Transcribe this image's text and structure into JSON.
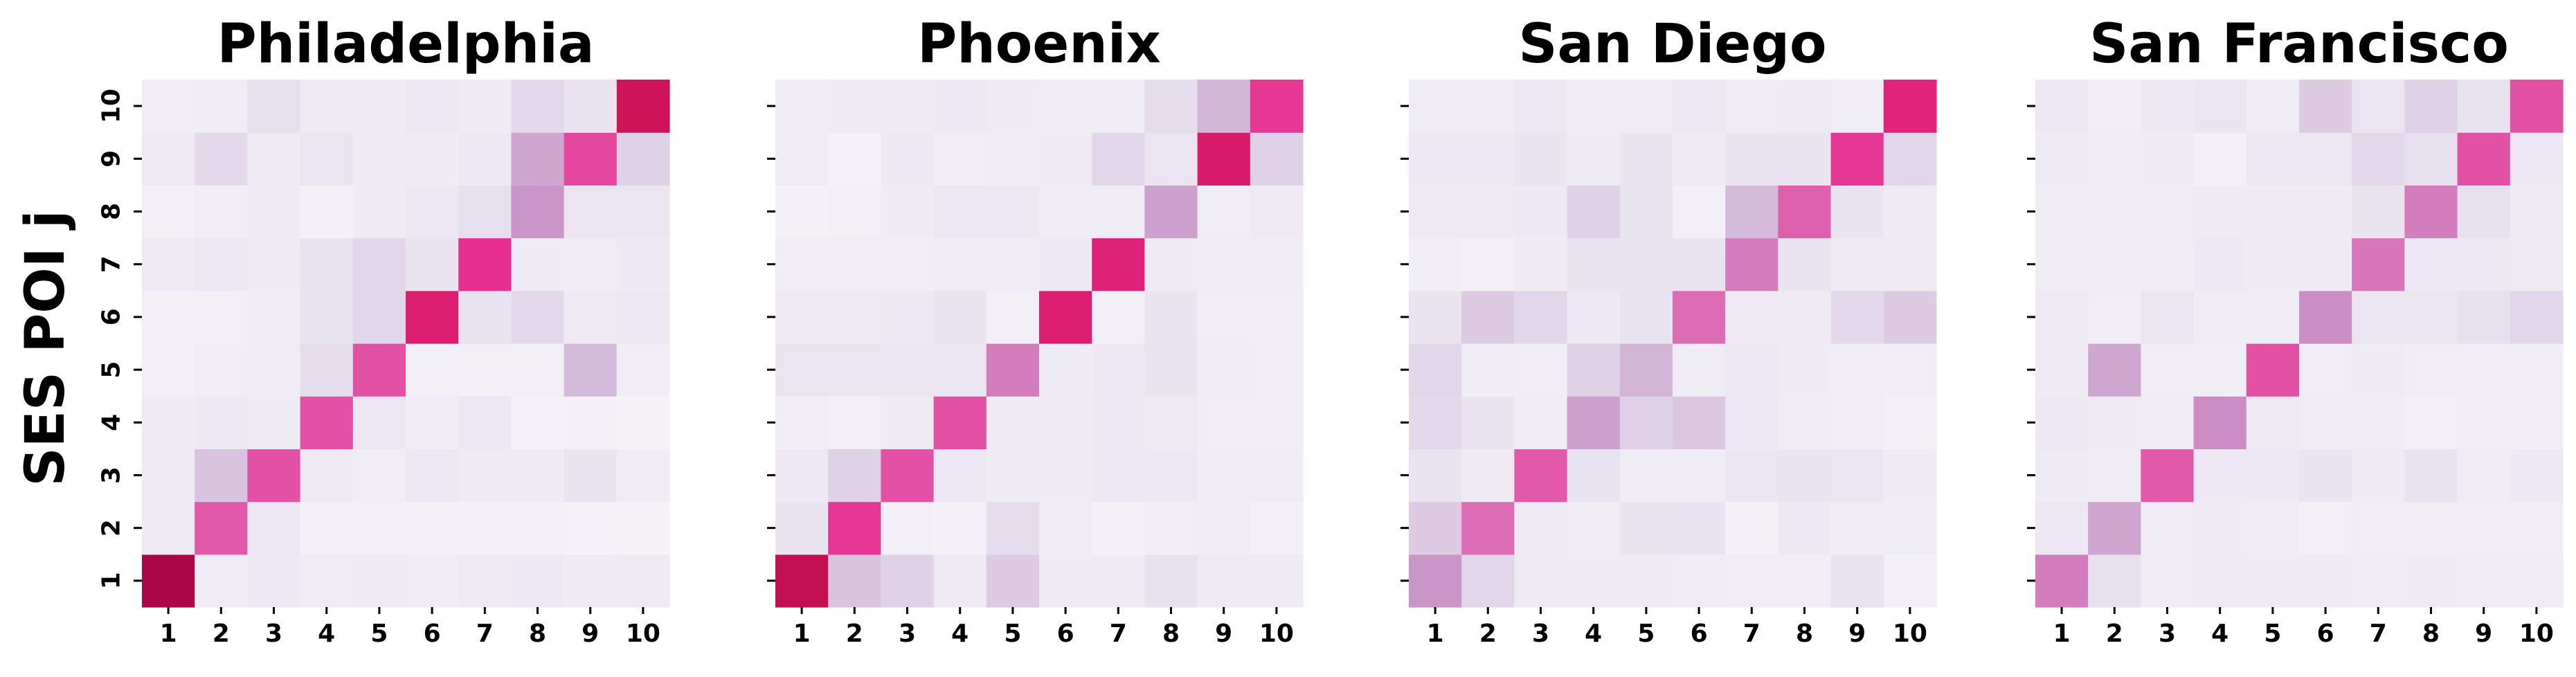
{
  "chart_data": [
    {
      "type": "heatmap",
      "title": "Philadelphia",
      "ylabel": "SES POI j",
      "xlabel": "",
      "x_categories": [
        "1",
        "2",
        "3",
        "4",
        "5",
        "6",
        "7",
        "8",
        "9",
        "10"
      ],
      "y_categories": [
        "1",
        "2",
        "3",
        "4",
        "5",
        "6",
        "7",
        "8",
        "9",
        "10"
      ],
      "value_range": [
        0,
        1
      ],
      "colormap": [
        "#f7f4f9",
        "#e7e1ef",
        "#d4b9da",
        "#c994c7",
        "#df65b0",
        "#e7298a",
        "#ce1256",
        "#980043"
      ],
      "values": [
        [
          0.95,
          0.06,
          0.09,
          0.06,
          0.07,
          0.06,
          0.08,
          0.09,
          0.07,
          0.08
        ],
        [
          0.08,
          0.6,
          0.1,
          0.04,
          0.04,
          0.03,
          0.03,
          0.03,
          0.02,
          0.01
        ],
        [
          0.07,
          0.25,
          0.62,
          0.08,
          0.05,
          0.1,
          0.07,
          0.07,
          0.12,
          0.06
        ],
        [
          0.07,
          0.1,
          0.07,
          0.62,
          0.1,
          0.06,
          0.1,
          0.02,
          0.03,
          0.01
        ],
        [
          0.04,
          0.05,
          0.06,
          0.16,
          0.62,
          0.04,
          0.04,
          0.04,
          0.28,
          0.05
        ],
        [
          0.04,
          0.04,
          0.06,
          0.13,
          0.18,
          0.78,
          0.12,
          0.17,
          0.08,
          0.1
        ],
        [
          0.08,
          0.1,
          0.07,
          0.13,
          0.18,
          0.12,
          0.7,
          0.07,
          0.06,
          0.09
        ],
        [
          0.04,
          0.05,
          0.07,
          0.03,
          0.07,
          0.1,
          0.15,
          0.42,
          0.11,
          0.11
        ],
        [
          0.08,
          0.17,
          0.08,
          0.11,
          0.07,
          0.07,
          0.09,
          0.36,
          0.64,
          0.2
        ],
        [
          0.05,
          0.06,
          0.15,
          0.07,
          0.07,
          0.1,
          0.07,
          0.17,
          0.12,
          0.85
        ]
      ]
    },
    {
      "type": "heatmap",
      "title": "Phoenix",
      "ylabel": "",
      "xlabel": "",
      "x_categories": [
        "1",
        "2",
        "3",
        "4",
        "5",
        "6",
        "7",
        "8",
        "9",
        "10"
      ],
      "y_categories": [
        "",
        "",
        "",
        "",
        "",
        "",
        "",
        "",
        "",
        ""
      ],
      "value_range": [
        0,
        1
      ],
      "colormap": [
        "#f7f4f9",
        "#e7e1ef",
        "#d4b9da",
        "#c994c7",
        "#df65b0",
        "#e7298a",
        "#ce1256",
        "#980043"
      ],
      "values": [
        [
          0.88,
          0.25,
          0.2,
          0.08,
          0.22,
          0.07,
          0.07,
          0.14,
          0.08,
          0.07
        ],
        [
          0.12,
          0.68,
          0.04,
          0.03,
          0.16,
          0.06,
          0.03,
          0.05,
          0.06,
          0.04
        ],
        [
          0.09,
          0.2,
          0.62,
          0.1,
          0.07,
          0.07,
          0.1,
          0.1,
          0.06,
          0.06
        ],
        [
          0.05,
          0.04,
          0.07,
          0.62,
          0.07,
          0.07,
          0.1,
          0.08,
          0.05,
          0.05
        ],
        [
          0.11,
          0.11,
          0.11,
          0.11,
          0.5,
          0.07,
          0.09,
          0.12,
          0.06,
          0.05
        ],
        [
          0.08,
          0.08,
          0.09,
          0.12,
          0.04,
          0.78,
          0.04,
          0.12,
          0.05,
          0.05
        ],
        [
          0.05,
          0.05,
          0.05,
          0.06,
          0.06,
          0.09,
          0.76,
          0.07,
          0.06,
          0.06
        ],
        [
          0.03,
          0.04,
          0.07,
          0.1,
          0.1,
          0.06,
          0.06,
          0.38,
          0.05,
          0.08
        ],
        [
          0.06,
          0.02,
          0.09,
          0.05,
          0.06,
          0.07,
          0.18,
          0.11,
          0.8,
          0.2
        ],
        [
          0.06,
          0.07,
          0.07,
          0.09,
          0.07,
          0.06,
          0.06,
          0.16,
          0.3,
          0.68
        ]
      ]
    },
    {
      "type": "heatmap",
      "title": "San Diego",
      "ylabel": "",
      "xlabel": "",
      "x_categories": [
        "1",
        "2",
        "3",
        "4",
        "5",
        "6",
        "7",
        "8",
        "9",
        "10"
      ],
      "y_categories": [
        "",
        "",
        "",
        "",
        "",
        "",
        "",
        "",
        "",
        ""
      ],
      "value_range": [
        0,
        1
      ],
      "colormap": [
        "#f7f4f9",
        "#e7e1ef",
        "#d4b9da",
        "#c994c7",
        "#df65b0",
        "#e7298a",
        "#ce1256",
        "#980043"
      ],
      "values": [
        [
          0.42,
          0.18,
          0.07,
          0.07,
          0.07,
          0.06,
          0.05,
          0.05,
          0.13,
          0.04
        ],
        [
          0.22,
          0.55,
          0.08,
          0.06,
          0.12,
          0.13,
          0.03,
          0.09,
          0.06,
          0.06
        ],
        [
          0.12,
          0.08,
          0.6,
          0.13,
          0.06,
          0.06,
          0.11,
          0.12,
          0.11,
          0.07
        ],
        [
          0.17,
          0.12,
          0.06,
          0.38,
          0.2,
          0.24,
          0.1,
          0.06,
          0.05,
          0.04
        ],
        [
          0.18,
          0.06,
          0.05,
          0.2,
          0.3,
          0.06,
          0.09,
          0.07,
          0.05,
          0.05
        ],
        [
          0.12,
          0.22,
          0.18,
          0.09,
          0.13,
          0.55,
          0.08,
          0.08,
          0.17,
          0.22
        ],
        [
          0.05,
          0.04,
          0.07,
          0.12,
          0.12,
          0.12,
          0.5,
          0.12,
          0.08,
          0.08
        ],
        [
          0.08,
          0.08,
          0.09,
          0.2,
          0.12,
          0.04,
          0.28,
          0.58,
          0.12,
          0.08
        ],
        [
          0.09,
          0.09,
          0.12,
          0.07,
          0.12,
          0.07,
          0.12,
          0.12,
          0.68,
          0.18
        ],
        [
          0.06,
          0.06,
          0.1,
          0.06,
          0.06,
          0.1,
          0.06,
          0.08,
          0.05,
          0.75
        ]
      ]
    },
    {
      "type": "heatmap",
      "title": "San Francisco",
      "ylabel": "",
      "xlabel": "",
      "x_categories": [
        "1",
        "2",
        "3",
        "4",
        "5",
        "6",
        "7",
        "8",
        "9",
        "10"
      ],
      "y_categories": [
        "",
        "",
        "",
        "",
        "",
        "",
        "",
        "",
        "",
        ""
      ],
      "value_range": [
        0,
        1
      ],
      "colormap": [
        "#f7f4f9",
        "#e7e1ef",
        "#d4b9da",
        "#c994c7",
        "#df65b0",
        "#e7298a",
        "#ce1256",
        "#980043"
      ],
      "values": [
        [
          0.5,
          0.14,
          0.06,
          0.08,
          0.07,
          0.07,
          0.06,
          0.07,
          0.06,
          0.06
        ],
        [
          0.1,
          0.36,
          0.06,
          0.07,
          0.06,
          0.04,
          0.05,
          0.05,
          0.05,
          0.05
        ],
        [
          0.07,
          0.06,
          0.6,
          0.09,
          0.09,
          0.12,
          0.07,
          0.13,
          0.06,
          0.09
        ],
        [
          0.09,
          0.07,
          0.06,
          0.45,
          0.08,
          0.06,
          0.06,
          0.04,
          0.05,
          0.05
        ],
        [
          0.08,
          0.35,
          0.05,
          0.05,
          0.62,
          0.05,
          0.07,
          0.05,
          0.05,
          0.05
        ],
        [
          0.08,
          0.05,
          0.11,
          0.06,
          0.06,
          0.45,
          0.11,
          0.11,
          0.14,
          0.18
        ],
        [
          0.06,
          0.06,
          0.06,
          0.09,
          0.07,
          0.07,
          0.52,
          0.1,
          0.1,
          0.08
        ],
        [
          0.06,
          0.06,
          0.06,
          0.07,
          0.07,
          0.07,
          0.12,
          0.5,
          0.14,
          0.07
        ],
        [
          0.07,
          0.06,
          0.07,
          0.04,
          0.1,
          0.1,
          0.17,
          0.15,
          0.62,
          0.09
        ],
        [
          0.1,
          0.05,
          0.09,
          0.11,
          0.06,
          0.22,
          0.11,
          0.2,
          0.13,
          0.62
        ]
      ]
    }
  ]
}
